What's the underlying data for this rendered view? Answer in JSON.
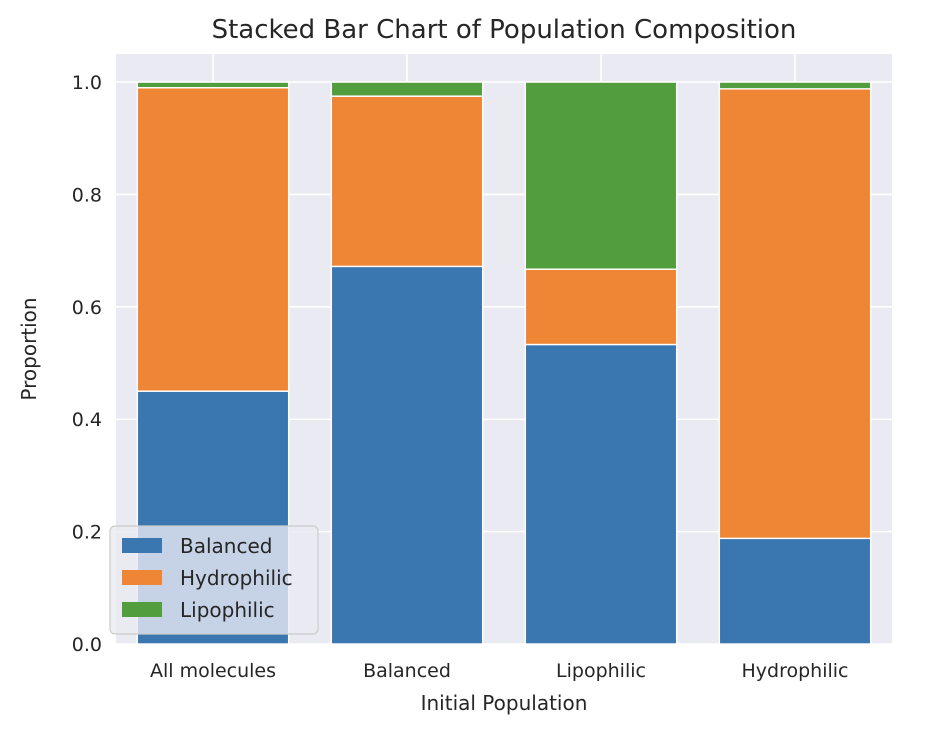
{
  "chart_data": {
    "type": "bar",
    "stacked": true,
    "title": "Stacked Bar Chart of Population Composition",
    "xlabel": "Initial Population",
    "ylabel": "Proportion",
    "categories": [
      "All molecules",
      "Balanced",
      "Lipophilic",
      "Hydrophilic"
    ],
    "series": [
      {
        "name": "Balanced",
        "color": "#3a76af",
        "values": [
          0.45,
          0.672,
          0.533,
          0.188
        ]
      },
      {
        "name": "Hydrophilic",
        "color": "#ef8636",
        "values": [
          0.54,
          0.303,
          0.134,
          0.8
        ]
      },
      {
        "name": "Lipophilic",
        "color": "#529d3e",
        "values": [
          0.01,
          0.025,
          0.333,
          0.012
        ]
      }
    ],
    "ylim": [
      0,
      1.05
    ],
    "yticks": [
      "0.0",
      "0.2",
      "0.4",
      "0.6",
      "0.8",
      "1.0"
    ],
    "grid": true,
    "legend_position": "lower-left",
    "colors": {
      "plot_background": "#eaeaf2",
      "grid": "#ffffff"
    }
  }
}
